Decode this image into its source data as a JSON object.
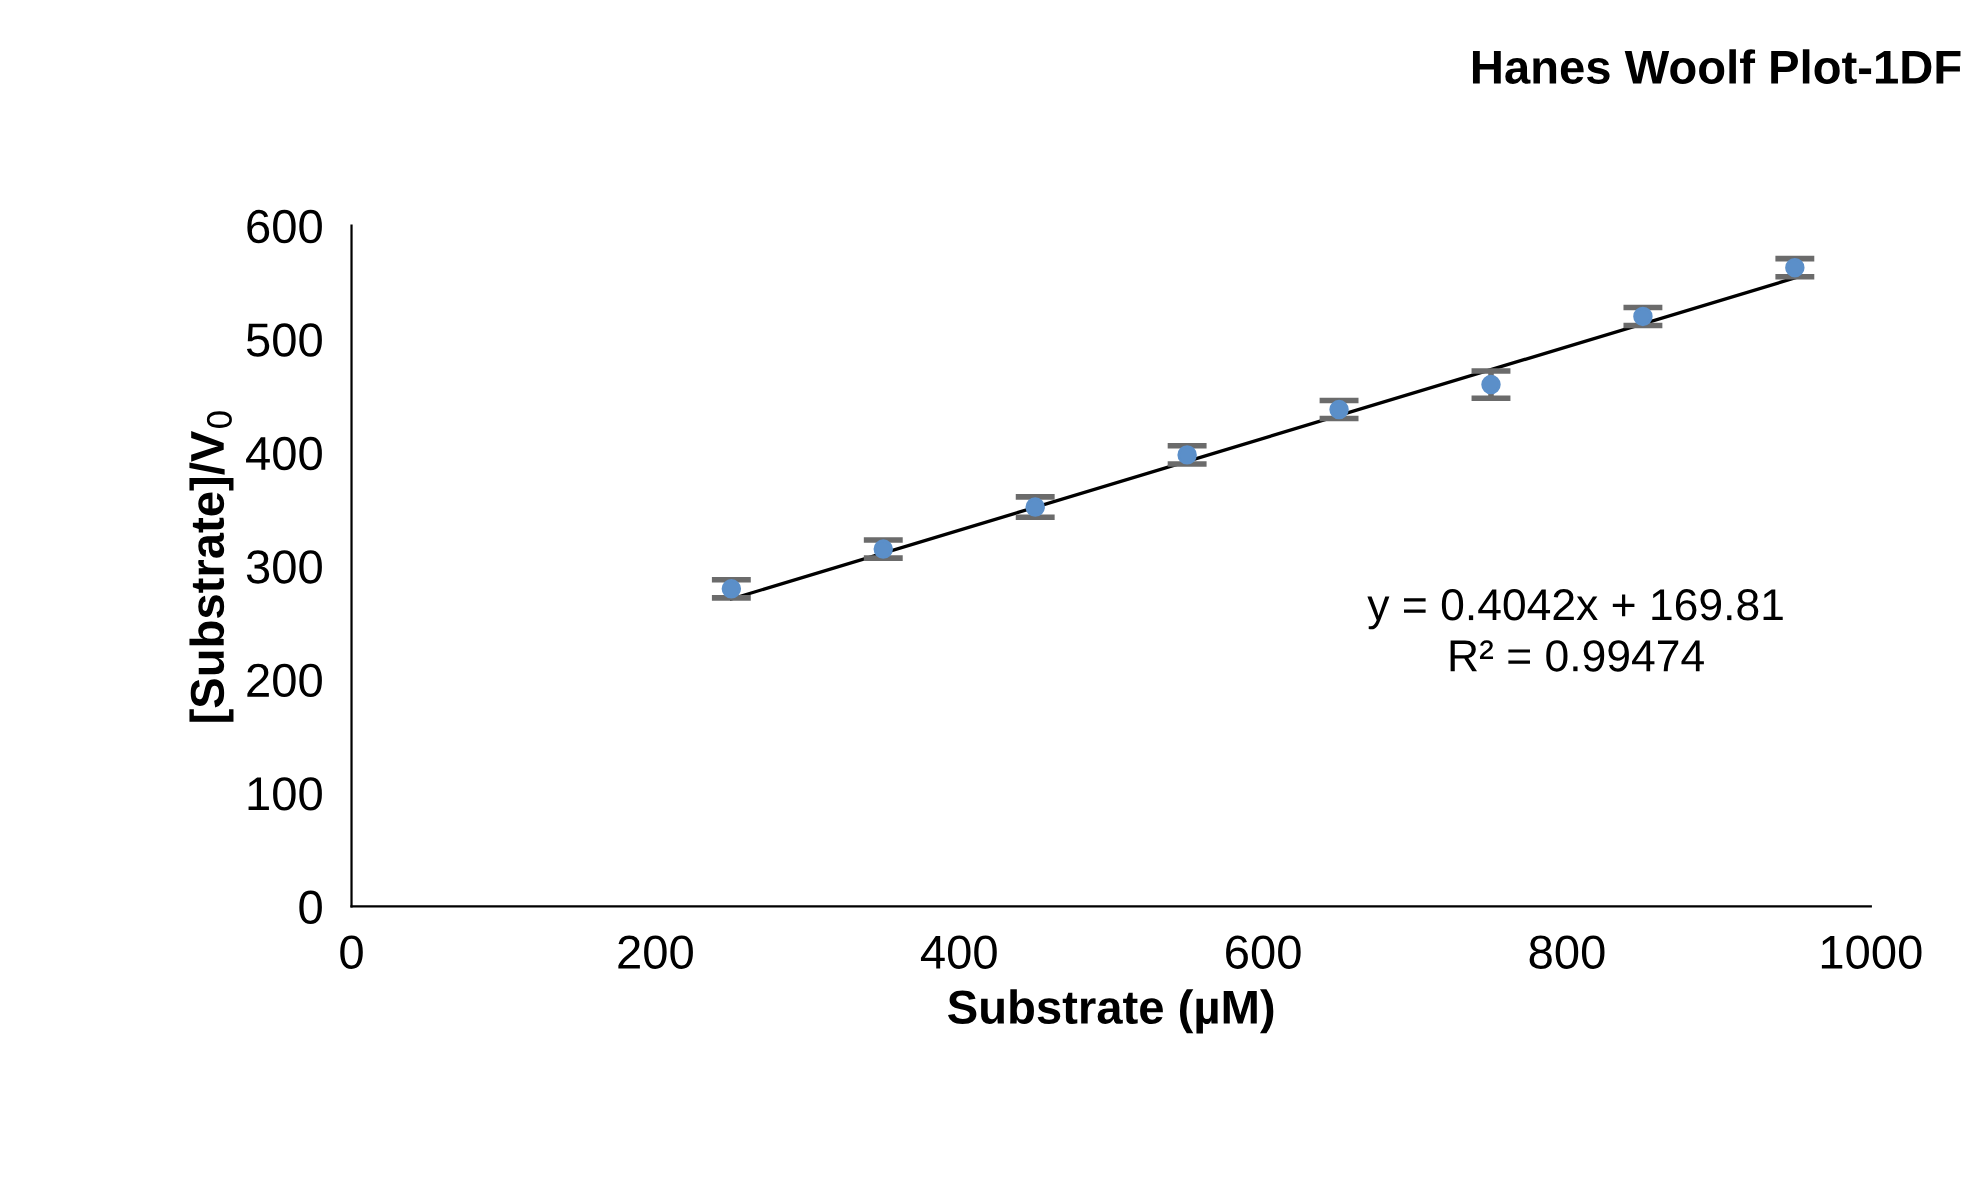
{
  "chart_data": {
    "type": "scatter",
    "title": "Hanes Woolf Plot-1DF",
    "xlabel": "Substrate (µM)",
    "ylabel": "[Substrate]/V$_{0}$",
    "x": [
      250,
      350,
      450,
      550,
      650,
      750,
      850,
      950
    ],
    "series": [
      {
        "color": "#5b8fc9",
        "marker": "circle",
        "values": [
          280,
          315,
          352,
          398,
          438,
          460,
          520,
          563
        ],
        "errors": [
          8,
          8,
          9,
          8,
          8,
          12,
          8,
          8
        ]
      },
      {
        "type": "line",
        "color": "#000000",
        "x": [
          250,
          950
        ],
        "values": [
          271,
          554
        ]
      }
    ],
    "annotations": [
      "y = 0.4042x + 169.81\nR² = 0.99474"
    ],
    "xlim": [
      0,
      1000
    ],
    "xticks": [
      0,
      200,
      400,
      600,
      800,
      1000
    ],
    "ylim": [
      0,
      600
    ],
    "yticks": [
      0,
      100,
      200,
      300,
      400,
      500,
      600
    ],
    "grid": false,
    "legend": false
  }
}
